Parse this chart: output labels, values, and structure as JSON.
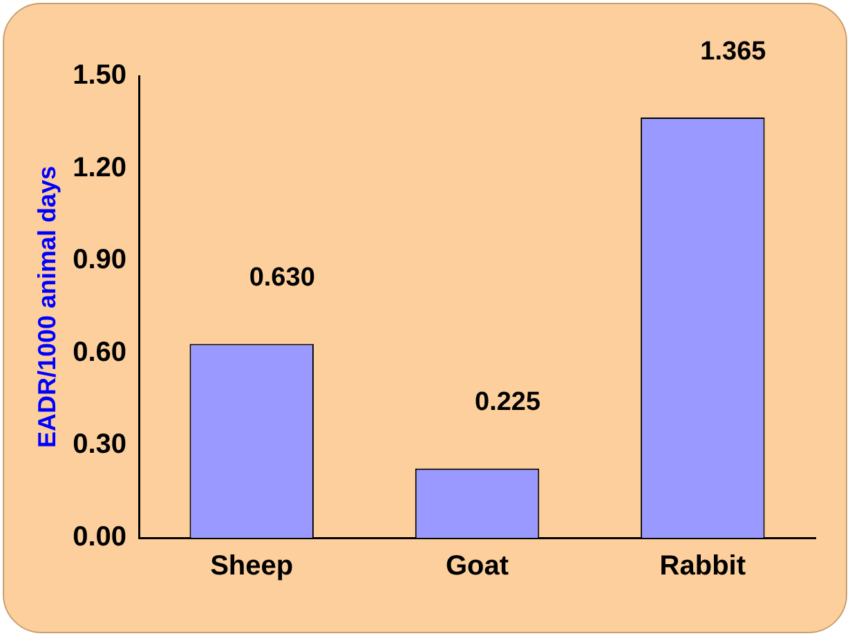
{
  "chart_data": {
    "type": "bar",
    "ylabel": "EADR/1000 animal days",
    "categories": [
      "Sheep",
      "Goat",
      "Rabbit"
    ],
    "values": [
      0.63,
      0.225,
      1.365
    ],
    "color": "#9999ff",
    "value_labels": [
      "0.630",
      "0.225",
      "1.365"
    ],
    "ylim": [
      0,
      1.5
    ],
    "yticks": [
      {
        "value": 0,
        "label": "0.00"
      },
      {
        "value": 0.3,
        "label": "0.30"
      },
      {
        "value": 0.6,
        "label": "0.60"
      },
      {
        "value": 0.9,
        "label": "0.90"
      },
      {
        "value": 1.2,
        "label": "1.20"
      },
      {
        "value": 1.5,
        "label": "1.50"
      }
    ],
    "grid": false,
    "legend": false
  }
}
